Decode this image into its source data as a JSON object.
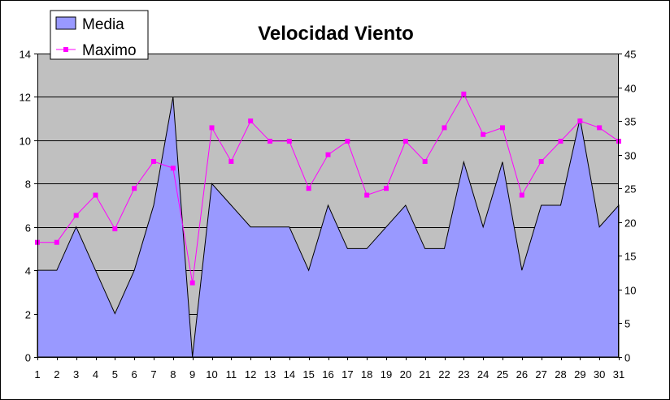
{
  "chart_data": {
    "type": "area",
    "title": "Velocidad Viento",
    "xlabel": "",
    "ylabel": "",
    "x": [
      1,
      2,
      3,
      4,
      5,
      6,
      7,
      8,
      9,
      10,
      11,
      12,
      13,
      14,
      15,
      16,
      17,
      18,
      19,
      20,
      21,
      22,
      23,
      24,
      25,
      26,
      27,
      28,
      29,
      30,
      31
    ],
    "left_ylim": [
      0,
      14
    ],
    "left_yticks": [
      0,
      2,
      4,
      6,
      8,
      10,
      12,
      14
    ],
    "right_ylim": [
      0,
      45
    ],
    "right_yticks": [
      0,
      5,
      10,
      15,
      20,
      25,
      30,
      35,
      40,
      45
    ],
    "grid": true,
    "legend_position": "top-left",
    "series": [
      {
        "name": "Media",
        "type": "area",
        "axis": "left",
        "color": "#9999ff",
        "values": [
          4,
          4,
          6,
          4,
          2,
          4,
          7,
          12,
          0,
          8,
          7,
          6,
          6,
          6,
          4,
          7,
          5,
          5,
          6,
          7,
          5,
          5,
          9,
          6,
          9,
          4,
          7,
          7,
          11,
          6,
          7
        ]
      },
      {
        "name": "Maximo",
        "type": "line",
        "axis": "right",
        "color": "#ff00ff",
        "values": [
          17,
          17,
          21,
          24,
          19,
          25,
          29,
          28,
          11,
          34,
          29,
          35,
          32,
          32,
          25,
          30,
          32,
          24,
          25,
          32,
          29,
          34,
          39,
          33,
          34,
          24,
          29,
          32,
          35,
          34,
          32
        ]
      }
    ],
    "plot_background": "#c0c0c0",
    "gridline_color": "#000000"
  }
}
